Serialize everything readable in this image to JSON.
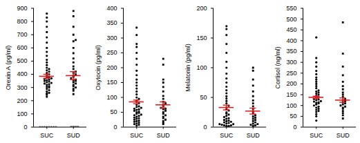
{
  "chart_data": [
    {
      "type": "scatter",
      "y_label": "Orexin A (pg/ml)",
      "color": "#000000",
      "ylim": [
        0,
        900
      ],
      "yticks": [
        0,
        100,
        200,
        300,
        400,
        500,
        600,
        700,
        800,
        900
      ],
      "series": [
        {
          "name": "SUC",
          "marker": "circle",
          "mean": 385,
          "error": 15,
          "values": [
            0,
            0,
            0,
            0,
            0,
            0,
            0,
            0,
            230,
            245,
            255,
            260,
            270,
            280,
            290,
            300,
            305,
            310,
            320,
            325,
            330,
            335,
            340,
            345,
            350,
            355,
            360,
            365,
            370,
            375,
            380,
            390,
            400,
            410,
            420,
            430,
            440,
            450,
            470,
            490,
            510,
            540,
            570,
            600,
            640,
            680,
            720,
            760,
            800,
            830,
            860
          ]
        },
        {
          "name": "SUD",
          "marker": "square",
          "mean": 390,
          "error": 30,
          "values": [
            0,
            0,
            0,
            0,
            250,
            275,
            290,
            300,
            310,
            320,
            330,
            340,
            350,
            355,
            360,
            370,
            380,
            390,
            400,
            410,
            420,
            440,
            460,
            490,
            520,
            560,
            600,
            650,
            660,
            700,
            760,
            840,
            880
          ]
        }
      ]
    },
    {
      "type": "scatter",
      "y_label": "Oxytocin (pg/ml)",
      "color": "#000000",
      "ylim": [
        0,
        400
      ],
      "yticks": [
        0,
        50,
        100,
        150,
        200,
        250,
        300,
        350,
        400
      ],
      "series": [
        {
          "name": "SUC",
          "marker": "circle",
          "mean": 85,
          "error": 6,
          "values": [
            5,
            8,
            10,
            12,
            15,
            18,
            20,
            22,
            25,
            28,
            30,
            32,
            35,
            38,
            40,
            42,
            45,
            48,
            50,
            52,
            55,
            58,
            60,
            62,
            65,
            68,
            70,
            75,
            80,
            85,
            90,
            95,
            100,
            110,
            120,
            130,
            140,
            150,
            160,
            175,
            190,
            210,
            230,
            250,
            270,
            280,
            310,
            335
          ]
        },
        {
          "name": "SUD",
          "marker": "square",
          "mean": 75,
          "error": 10,
          "values": [
            10,
            15,
            20,
            25,
            30,
            35,
            40,
            45,
            50,
            55,
            60,
            62,
            65,
            70,
            75,
            80,
            85,
            95,
            105,
            120,
            135,
            150,
            160,
            210,
            230
          ]
        }
      ]
    },
    {
      "type": "scatter",
      "y_label": "Melatonin (pg/ml)",
      "color": "#000000",
      "ylim": [
        0,
        200
      ],
      "yticks": [
        0,
        50,
        100,
        150,
        200
      ],
      "series": [
        {
          "name": "SUC",
          "marker": "circle",
          "mean": 33,
          "error": 4,
          "values": [
            1,
            1,
            2,
            2,
            3,
            3,
            4,
            5,
            5,
            6,
            7,
            8,
            9,
            10,
            11,
            12,
            14,
            15,
            17,
            19,
            21,
            23,
            25,
            28,
            30,
            33,
            36,
            40,
            44,
            48,
            52,
            57,
            62,
            68,
            75,
            82,
            90,
            100,
            110,
            125,
            140,
            155,
            165,
            170
          ]
        },
        {
          "name": "SUD",
          "marker": "square",
          "mean": 27,
          "error": 5,
          "values": [
            1,
            2,
            3,
            4,
            5,
            6,
            8,
            10,
            12,
            14,
            16,
            18,
            20,
            23,
            26,
            30,
            35,
            40,
            45,
            52,
            60,
            70,
            80,
            95,
            100
          ]
        }
      ]
    },
    {
      "type": "scatter",
      "y_label": "Cortisol (ng/ml)",
      "color": "#000000",
      "ylim": [
        0,
        550
      ],
      "yticks": [
        0,
        50,
        100,
        150,
        200,
        250,
        300,
        350,
        400,
        450,
        500,
        550
      ],
      "series": [
        {
          "name": "SUC",
          "marker": "circle",
          "mean": 138,
          "error": 5,
          "values": [
            30,
            50,
            60,
            70,
            75,
            80,
            85,
            90,
            95,
            100,
            105,
            110,
            112,
            115,
            118,
            120,
            125,
            128,
            130,
            135,
            140,
            145,
            150,
            155,
            160,
            165,
            170,
            180,
            190,
            200,
            210,
            220,
            230,
            245,
            260,
            280,
            300,
            320,
            415
          ]
        },
        {
          "name": "SUD",
          "marker": "square",
          "mean": 125,
          "error": 10,
          "values": [
            40,
            55,
            65,
            75,
            85,
            90,
            95,
            100,
            105,
            110,
            115,
            120,
            125,
            130,
            140,
            150,
            160,
            175,
            190,
            210,
            240,
            280,
            340,
            485
          ]
        }
      ]
    }
  ]
}
